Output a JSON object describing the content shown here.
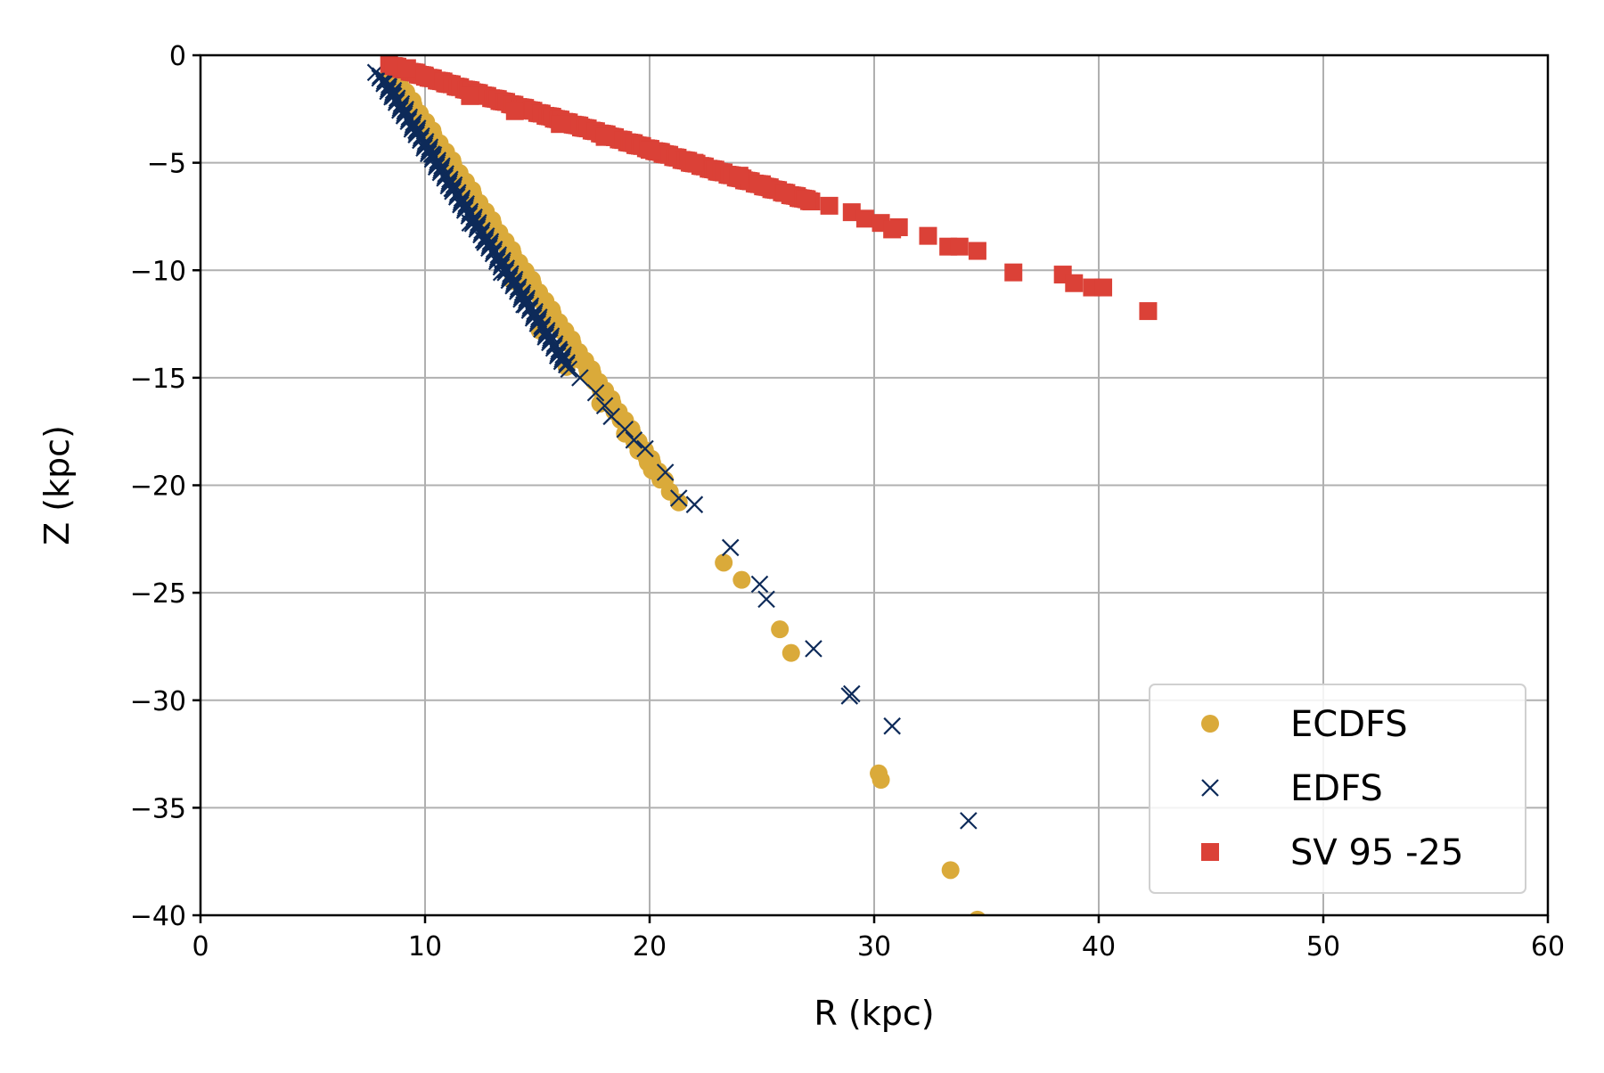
{
  "chart_data": {
    "type": "scatter",
    "title": "",
    "xlabel": "R (kpc)",
    "ylabel": "Z (kpc)",
    "xlim": [
      0,
      60
    ],
    "ylim": [
      -40,
      0
    ],
    "xticks": [
      0,
      10,
      20,
      30,
      40,
      50,
      60
    ],
    "yticks": [
      0,
      -5,
      -10,
      -15,
      -20,
      -25,
      -30,
      -35,
      -40
    ],
    "xtick_labels": [
      "0",
      "10",
      "20",
      "30",
      "40",
      "50",
      "60"
    ],
    "ytick_labels": [
      "0",
      "−5",
      "−10",
      "−15",
      "−20",
      "−25",
      "−30",
      "−35",
      "−40"
    ],
    "grid": true,
    "legend_position": "lower-right",
    "series": [
      {
        "name": "ECDFS",
        "marker": "circle",
        "color": "#DAAA3A",
        "dense_segment": {
          "from": [
            8.6,
            -1.0
          ],
          "to": [
            20.6,
            -19.8
          ],
          "count": 150
        },
        "points": [
          [
            8.9,
            -1.6
          ],
          [
            10.6,
            -4.5
          ],
          [
            12.3,
            -7.6
          ],
          [
            13.9,
            -10.5
          ],
          [
            15.1,
            -12.8
          ],
          [
            16.3,
            -14.5
          ],
          [
            17.8,
            -16.2
          ],
          [
            18.9,
            -17.6
          ],
          [
            19.5,
            -18.4
          ],
          [
            20.1,
            -19.3
          ],
          [
            20.9,
            -20.3
          ],
          [
            21.3,
            -20.8
          ],
          [
            23.3,
            -23.6
          ],
          [
            24.1,
            -24.4
          ],
          [
            25.8,
            -26.7
          ],
          [
            26.3,
            -27.8
          ],
          [
            30.2,
            -33.4
          ],
          [
            30.3,
            -33.7
          ],
          [
            33.4,
            -37.9
          ],
          [
            34.6,
            -40.2
          ]
        ]
      },
      {
        "name": "EDFS",
        "marker": "x",
        "color": "#0D2A59",
        "dense_segment": {
          "from": [
            8.0,
            -0.9
          ],
          "to": [
            16.3,
            -14.4
          ],
          "count": 170
        },
        "points": [
          [
            8.3,
            -1.2
          ],
          [
            8.6,
            -1.9
          ],
          [
            9.1,
            -2.6
          ],
          [
            9.6,
            -3.5
          ],
          [
            10.3,
            -4.6
          ],
          [
            11.2,
            -6.2
          ],
          [
            12.0,
            -7.8
          ],
          [
            12.6,
            -8.6
          ],
          [
            13.4,
            -10.1
          ],
          [
            14.4,
            -11.6
          ],
          [
            15.2,
            -12.6
          ],
          [
            16.0,
            -13.8
          ],
          [
            16.4,
            -14.6
          ],
          [
            16.9,
            -15.0
          ],
          [
            17.6,
            -15.7
          ],
          [
            18.0,
            -16.3
          ],
          [
            18.3,
            -16.8
          ],
          [
            18.9,
            -17.4
          ],
          [
            19.3,
            -17.9
          ],
          [
            19.8,
            -18.3
          ],
          [
            20.7,
            -19.4
          ],
          [
            21.3,
            -20.6
          ],
          [
            22.0,
            -20.9
          ],
          [
            23.6,
            -22.9
          ],
          [
            24.9,
            -24.6
          ],
          [
            25.2,
            -25.3
          ],
          [
            27.3,
            -27.6
          ],
          [
            28.9,
            -29.8
          ],
          [
            29.0,
            -29.7
          ],
          [
            30.8,
            -31.2
          ],
          [
            34.2,
            -35.6
          ]
        ]
      },
      {
        "name": "SV 95 -25",
        "marker": "square",
        "color": "#DB4137",
        "dense_segment": {
          "from": [
            8.6,
            -0.5
          ],
          "to": [
            27.2,
            -6.8
          ],
          "count": 170
        },
        "points": [
          [
            8.6,
            -0.5
          ],
          [
            9.2,
            -0.6
          ],
          [
            10.0,
            -1.0
          ],
          [
            12.0,
            -1.9
          ],
          [
            14.0,
            -2.6
          ],
          [
            16.0,
            -3.2
          ],
          [
            18.0,
            -3.8
          ],
          [
            20.0,
            -4.4
          ],
          [
            22.0,
            -5.0
          ],
          [
            24.0,
            -5.6
          ],
          [
            25.0,
            -6.0
          ],
          [
            26.0,
            -6.4
          ],
          [
            27.0,
            -6.7
          ],
          [
            28.0,
            -7.0
          ],
          [
            29.0,
            -7.3
          ],
          [
            29.6,
            -7.6
          ],
          [
            30.3,
            -7.8
          ],
          [
            31.1,
            -8.0
          ],
          [
            30.8,
            -8.1
          ],
          [
            32.4,
            -8.4
          ],
          [
            33.3,
            -8.9
          ],
          [
            33.8,
            -8.9
          ],
          [
            34.6,
            -9.1
          ],
          [
            36.2,
            -10.1
          ],
          [
            38.4,
            -10.2
          ],
          [
            38.9,
            -10.6
          ],
          [
            39.7,
            -10.8
          ],
          [
            40.2,
            -10.8
          ],
          [
            42.2,
            -11.9
          ]
        ]
      }
    ]
  }
}
